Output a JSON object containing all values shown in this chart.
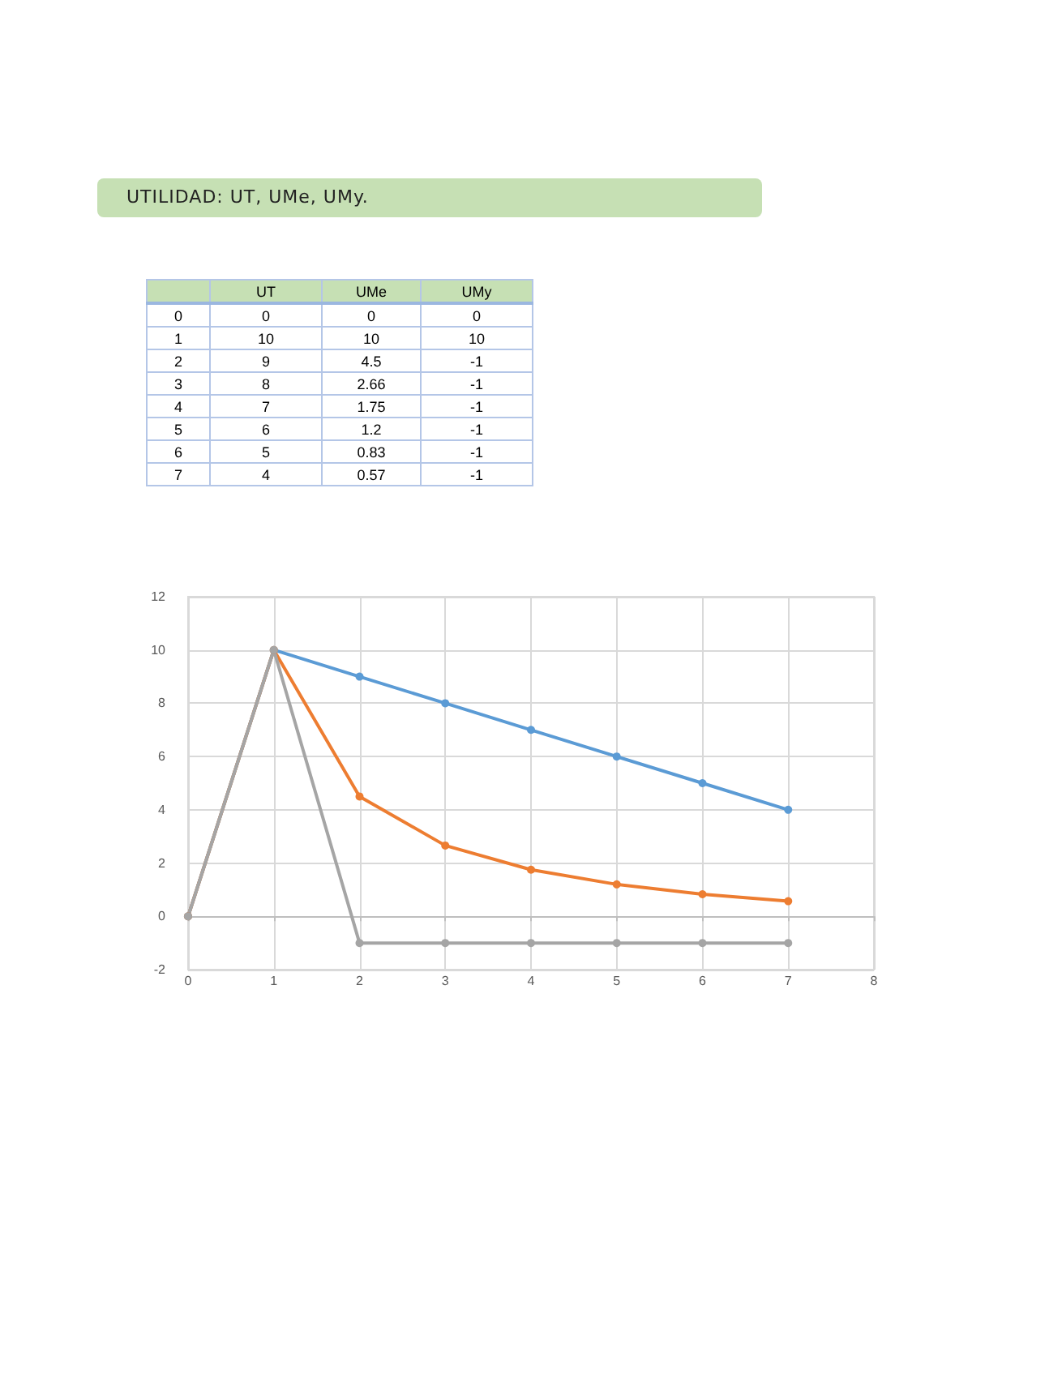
{
  "chart_data": [
    {
      "type": "heatmap",
      "title": "UTILIDAD: UT, UMe, UMy.",
      "categories": [
        "UT",
        "UMe",
        "UMy"
      ],
      "y_categories": [
        "0",
        "1",
        "2",
        "3",
        "4",
        "5",
        "6",
        "7"
      ],
      "cells": [
        [
          0,
          0,
          0
        ],
        [
          10,
          10,
          10
        ],
        [
          9,
          4.5,
          -1
        ],
        [
          8,
          2.66,
          -1
        ],
        [
          7,
          1.75,
          -1
        ],
        [
          6,
          1.2,
          -1
        ],
        [
          5,
          0.83,
          -1
        ],
        [
          4,
          0.57,
          -1
        ]
      ],
      "data_labels": true
    },
    {
      "type": "line",
      "x": [
        0,
        1,
        2,
        3,
        4,
        5,
        6,
        7
      ],
      "series": [
        {
          "color": "#5b9bd5",
          "values": [
            0,
            10,
            9,
            8,
            7,
            6,
            5,
            4
          ]
        },
        {
          "color": "#ed7d31",
          "values": [
            0,
            10,
            4.5,
            2.66,
            1.75,
            1.2,
            0.83,
            0.57
          ]
        },
        {
          "color": "#a5a5a5",
          "values": [
            0,
            10,
            -1,
            -1,
            -1,
            -1,
            -1,
            -1
          ]
        }
      ],
      "xlim": [
        0,
        8
      ],
      "xticks": [
        0,
        1,
        2,
        3,
        4,
        5,
        6,
        7,
        8
      ],
      "ylim": [
        -2,
        12
      ],
      "yticks": [
        -2,
        0,
        2,
        4,
        6,
        8,
        10,
        12
      ],
      "grid": true,
      "marker": "circle",
      "line_style": "solid"
    }
  ]
}
